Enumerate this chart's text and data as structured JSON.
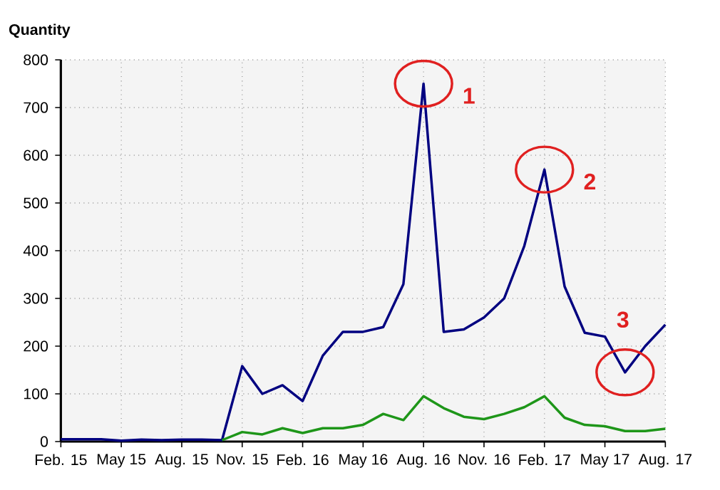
{
  "chart_data": {
    "type": "line",
    "ylabel": "Quantity",
    "x": [
      "2015-02",
      "2015-03",
      "2015-04",
      "2015-05",
      "2015-06",
      "2015-07",
      "2015-08",
      "2015-09",
      "2015-10",
      "2015-11",
      "2015-12",
      "2016-01",
      "2016-02",
      "2016-03",
      "2016-04",
      "2016-05",
      "2016-06",
      "2016-07",
      "2016-08",
      "2016-09",
      "2016-10",
      "2016-11",
      "2016-12",
      "2017-01",
      "2017-02",
      "2017-03",
      "2017-04",
      "2017-05",
      "2017-06",
      "2017-07",
      "2017-08"
    ],
    "series": [
      {
        "color": "#000080",
        "values": [
          5,
          5,
          5,
          2,
          4,
          3,
          4,
          4,
          3,
          158,
          100,
          118,
          85,
          180,
          230,
          230,
          240,
          330,
          750,
          230,
          235,
          260,
          300,
          410,
          570,
          325,
          228,
          220,
          145,
          200,
          245
        ]
      },
      {
        "color": "#1e9619",
        "values": [
          null,
          null,
          null,
          null,
          null,
          null,
          null,
          null,
          3,
          20,
          15,
          28,
          18,
          28,
          28,
          35,
          58,
          45,
          95,
          70,
          52,
          47,
          58,
          72,
          95,
          50,
          35,
          32,
          22,
          22,
          27
        ]
      }
    ],
    "xlim": [
      "2015-02",
      "2017-08"
    ],
    "xticks": [
      {
        "value": "2015-02",
        "label": "Feb. 15"
      },
      {
        "value": "2015-05",
        "label": "May 15"
      },
      {
        "value": "2015-08",
        "label": "Aug. 15"
      },
      {
        "value": "2015-11",
        "label": "Nov. 15"
      },
      {
        "value": "2016-02",
        "label": "Feb. 16"
      },
      {
        "value": "2016-05",
        "label": "May 16"
      },
      {
        "value": "2016-08",
        "label": "Aug. 16"
      },
      {
        "value": "2016-11",
        "label": "Nov. 16"
      },
      {
        "value": "2017-02",
        "label": "Feb. 17"
      },
      {
        "value": "2017-05",
        "label": "May 17"
      },
      {
        "value": "2017-08",
        "label": "Aug. 17"
      }
    ],
    "ylim": [
      0,
      800
    ],
    "yticks": [
      0,
      100,
      200,
      300,
      400,
      500,
      600,
      700,
      800
    ],
    "grid": true,
    "marker": "none",
    "line_style": "solid",
    "annotations": [
      {
        "text": "1",
        "x": "2016-08",
        "y": 750
      },
      {
        "text": "2",
        "x": "2017-02",
        "y": 570
      },
      {
        "text": "3",
        "x": "2017-06",
        "y": 145
      }
    ]
  }
}
